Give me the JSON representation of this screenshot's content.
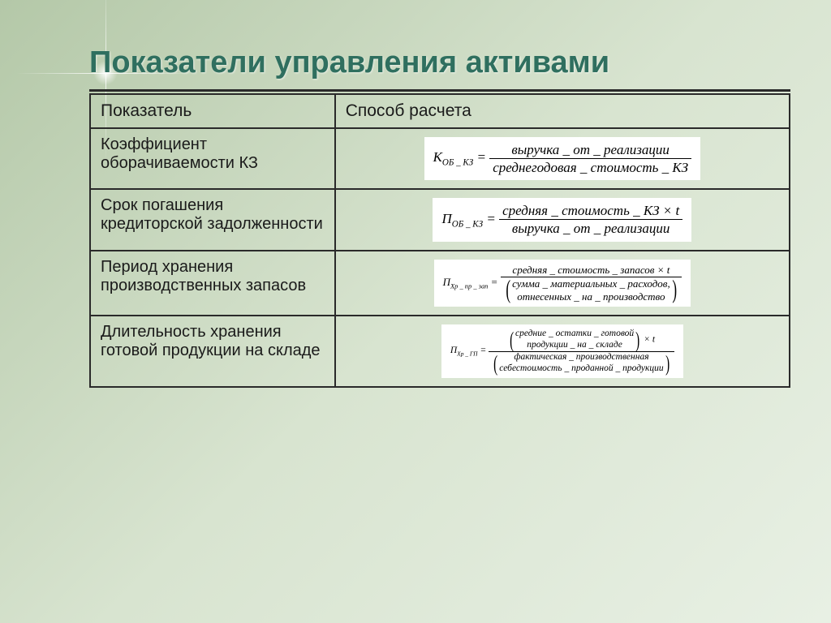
{
  "colors": {
    "title": "#2f6f5f",
    "border": "#2a2a2a",
    "bg_gradient_start": "#b4c8a8",
    "bg_gradient_end": "#e8f0e4",
    "formula_bg": "#ffffff"
  },
  "title": "Показатели управления активами",
  "table": {
    "headers": {
      "col1": "Показатель",
      "col2": "Способ расчета"
    },
    "rows": [
      {
        "indicator": "Коэффициент оборачиваемости КЗ",
        "formula": {
          "lhs_base": "К",
          "lhs_sub": "ОБ _ КЗ",
          "num": "выручка _ от _ реализации",
          "den": "среднегодовая _ стоимость _ КЗ"
        }
      },
      {
        "indicator": "Срок погашения кредиторской задолженности",
        "formula": {
          "lhs_base": "П",
          "lhs_sub": "ОБ _ КЗ",
          "num": "средняя _ стоимость _ КЗ × t",
          "den": "выручка _ от _ реализации"
        }
      },
      {
        "indicator": "Период хранения производственных запасов",
        "formula": {
          "lhs_base": "П",
          "lhs_sub": "Хр _ пр _ зап",
          "num": "средняя _ стоимость _ запасов × t",
          "den_paren_line1": "сумма _ материальных _ расходов,",
          "den_paren_line2": "отнесенных _ на _ производство"
        }
      },
      {
        "indicator": "Длительность хранения готовой продукции на складе",
        "formula": {
          "lhs_base": "П",
          "lhs_sub": "Хр _ ГП",
          "num_paren_line1": "средние _ остатки _ готовой",
          "num_paren_line2": "продукции _ на _ складе",
          "num_suffix": " × t",
          "den_paren_line1": "фактическая _ производственная",
          "den_paren_line2": "себестоимость _ проданной _ продукции"
        }
      }
    ]
  }
}
